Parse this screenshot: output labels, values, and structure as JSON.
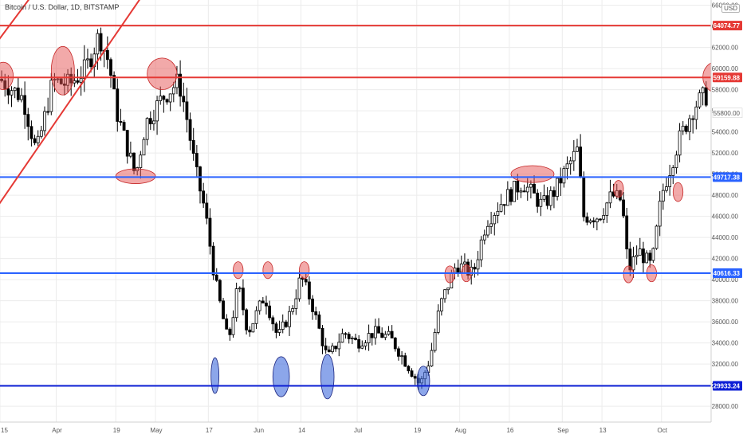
{
  "header": {
    "symbol_title": "Bitcoin / U.S. Dollar, 1D, BITSTAMP",
    "currency": "USD"
  },
  "chart_data": {
    "type": "candlestick",
    "title": "Bitcoin / U.S. Dollar, 1D, BITSTAMP",
    "currency": "USD",
    "ylim": [
      26500,
      66500
    ],
    "y_ticks": [
      28000,
      30000,
      32000,
      34000,
      36000,
      38000,
      40000,
      42000,
      44000,
      46000,
      48000,
      50000,
      52000,
      54000,
      56000,
      58000,
      60000,
      62000,
      64000,
      66000
    ],
    "y_tick_labels": [
      "28000.00",
      "30000.00",
      "32000.00",
      "34000.00",
      "36000.00",
      "38000.00",
      "40000.00",
      "42000.00",
      "44000.00",
      "46000.00",
      "48000.00",
      "50000.00",
      "52000.00",
      "54000.00",
      "56000.00",
      "58000.00",
      "60000.00",
      "62000.00",
      "64000.00",
      "66000.00"
    ],
    "x_range": [
      "2021-03-15",
      "2021-10-16"
    ],
    "x_ticks": [
      {
        "date": "2021-03-15",
        "label": "15"
      },
      {
        "date": "2021-04-01",
        "label": "Apr"
      },
      {
        "date": "2021-04-19",
        "label": "19"
      },
      {
        "date": "2021-05-01",
        "label": "May"
      },
      {
        "date": "2021-05-17",
        "label": "17"
      },
      {
        "date": "2021-06-01",
        "label": "Jun"
      },
      {
        "date": "2021-06-14",
        "label": "14"
      },
      {
        "date": "2021-07-01",
        "label": "Jul"
      },
      {
        "date": "2021-07-19",
        "label": "19"
      },
      {
        "date": "2021-08-01",
        "label": "Aug"
      },
      {
        "date": "2021-08-16",
        "label": "16"
      },
      {
        "date": "2021-09-01",
        "label": "Sep"
      },
      {
        "date": "2021-09-13",
        "label": "13"
      },
      {
        "date": "2021-10-01",
        "label": "Oct"
      }
    ],
    "price_path": [
      [
        "2021-03-15",
        59000
      ],
      [
        "2021-03-22",
        57200
      ],
      [
        "2021-03-26",
        52000
      ],
      [
        "2021-03-31",
        58800
      ],
      [
        "2021-04-05",
        58500
      ],
      [
        "2021-04-10",
        60000
      ],
      [
        "2021-04-14",
        63200
      ],
      [
        "2021-04-17",
        60500
      ],
      [
        "2021-04-19",
        56200
      ],
      [
        "2021-04-22",
        53000
      ],
      [
        "2021-04-25",
        49800
      ],
      [
        "2021-04-28",
        54800
      ],
      [
        "2021-05-03",
        57200
      ],
      [
        "2021-05-08",
        58800
      ],
      [
        "2021-05-10",
        56200
      ],
      [
        "2021-05-13",
        50500
      ],
      [
        "2021-05-16",
        46500
      ],
      [
        "2021-05-19",
        40000
      ],
      [
        "2021-05-23",
        34000
      ],
      [
        "2021-05-26",
        39500
      ],
      [
        "2021-05-29",
        35000
      ],
      [
        "2021-06-03",
        38500
      ],
      [
        "2021-06-07",
        34500
      ],
      [
        "2021-06-11",
        37000
      ],
      [
        "2021-06-14",
        40300
      ],
      [
        "2021-06-17",
        38000
      ],
      [
        "2021-06-22",
        32500
      ],
      [
        "2021-06-27",
        35000
      ],
      [
        "2021-07-01",
        34000
      ],
      [
        "2021-07-06",
        35000
      ],
      [
        "2021-07-11",
        34500
      ],
      [
        "2021-07-15",
        32500
      ],
      [
        "2021-07-20",
        30000
      ],
      [
        "2021-07-23",
        32500
      ],
      [
        "2021-07-26",
        37500
      ],
      [
        "2021-07-31",
        41500
      ],
      [
        "2021-08-05",
        40500
      ],
      [
        "2021-08-09",
        45500
      ],
      [
        "2021-08-14",
        47500
      ],
      [
        "2021-08-20",
        49200
      ],
      [
        "2021-08-26",
        47000
      ],
      [
        "2021-08-30",
        48500
      ],
      [
        "2021-09-01",
        49800
      ],
      [
        "2021-09-06",
        52500
      ],
      [
        "2021-09-07",
        46000
      ],
      [
        "2021-09-12",
        46000
      ],
      [
        "2021-09-16",
        48000
      ],
      [
        "2021-09-19",
        47500
      ],
      [
        "2021-09-21",
        40800
      ],
      [
        "2021-09-24",
        42800
      ],
      [
        "2021-09-28",
        41200
      ],
      [
        "2021-10-01",
        48000
      ],
      [
        "2021-10-06",
        53000
      ],
      [
        "2021-10-11",
        56500
      ],
      [
        "2021-10-14",
        57400
      ]
    ],
    "horizontal_levels": [
      {
        "value": 64074.77,
        "label": "64074.77",
        "color": "#e53935"
      },
      {
        "value": 59159.88,
        "label": "59159.88",
        "color": "#e53935"
      },
      {
        "value": 49717.38,
        "label": "49717.38",
        "color": "#2962ff"
      },
      {
        "value": 40616.33,
        "label": "40616.33",
        "color": "#2962ff"
      },
      {
        "value": 29933.24,
        "label": "29933.24",
        "color": "#0d1fd6"
      }
    ],
    "last_price": {
      "value": 55800,
      "label": "55800.00"
    },
    "trend_lines": [
      {
        "color": "#e53935",
        "from": [
          "2021-03-10",
          45000
        ],
        "to": [
          "2021-04-27",
          66900
        ]
      },
      {
        "color": "#e53935",
        "from": [
          "2021-03-11",
          61200
        ],
        "to": [
          "2021-03-26",
          67500
        ]
      }
    ],
    "highlight_ellipses": [
      {
        "color": "red",
        "center": [
          "2021-03-16",
          59300
        ],
        "rx_days": 3,
        "ry_price": 1300
      },
      {
        "color": "red",
        "center": [
          "2021-04-03",
          59800
        ],
        "rx_days": 3.5,
        "ry_price": 2300
      },
      {
        "color": "red",
        "center": [
          "2021-05-03",
          59500
        ],
        "rx_days": 4.5,
        "ry_price": 1500
      },
      {
        "color": "red",
        "center": [
          "2021-04-25",
          49800
        ],
        "rx_days": 6,
        "ry_price": 700
      },
      {
        "color": "red",
        "center": [
          "2021-10-18",
          59200
        ],
        "rx_days": 4.5,
        "ry_price": 1500
      },
      {
        "color": "red",
        "center": [
          "2021-08-23",
          50000
        ],
        "rx_days": 6.5,
        "ry_price": 800
      },
      {
        "color": "red",
        "center": [
          "2021-09-18",
          48600
        ],
        "rx_days": 1.5,
        "ry_price": 800
      },
      {
        "color": "red",
        "center": [
          "2021-10-06",
          48300
        ],
        "rx_days": 1.5,
        "ry_price": 900
      },
      {
        "color": "red",
        "center": [
          "2021-05-26",
          40900
        ],
        "rx_days": 1.5,
        "ry_price": 800
      },
      {
        "color": "red",
        "center": [
          "2021-06-04",
          40900
        ],
        "rx_days": 1.5,
        "ry_price": 800
      },
      {
        "color": "red",
        "center": [
          "2021-06-15",
          40900
        ],
        "rx_days": 1.5,
        "ry_price": 800
      },
      {
        "color": "red",
        "center": [
          "2021-07-29",
          40500
        ],
        "rx_days": 1.5,
        "ry_price": 800
      },
      {
        "color": "red",
        "center": [
          "2021-08-03",
          40600
        ],
        "rx_days": 1.5,
        "ry_price": 800
      },
      {
        "color": "red",
        "center": [
          "2021-09-21",
          40500
        ],
        "rx_days": 1.5,
        "ry_price": 800
      },
      {
        "color": "red",
        "center": [
          "2021-09-28",
          40600
        ],
        "rx_days": 1.5,
        "ry_price": 800
      },
      {
        "color": "blue",
        "center": [
          "2021-05-19",
          30900
        ],
        "rx_days": 1.2,
        "ry_price": 1700
      },
      {
        "color": "blue",
        "center": [
          "2021-06-08",
          30800
        ],
        "rx_days": 2.5,
        "ry_price": 1900
      },
      {
        "color": "blue",
        "center": [
          "2021-06-22",
          30800
        ],
        "rx_days": 2.0,
        "ry_price": 2100
      },
      {
        "color": "blue",
        "center": [
          "2021-07-21",
          30400
        ],
        "rx_days": 1.9,
        "ry_price": 1400
      }
    ]
  },
  "colors": {
    "up_candle": "#ffffff",
    "down_candle": "#000000",
    "grid": "#ececec",
    "axis_text": "#555555",
    "red_highlight_fill": "rgba(229,83,83,0.5)",
    "blue_highlight_fill": "rgba(64,107,220,0.6)"
  }
}
